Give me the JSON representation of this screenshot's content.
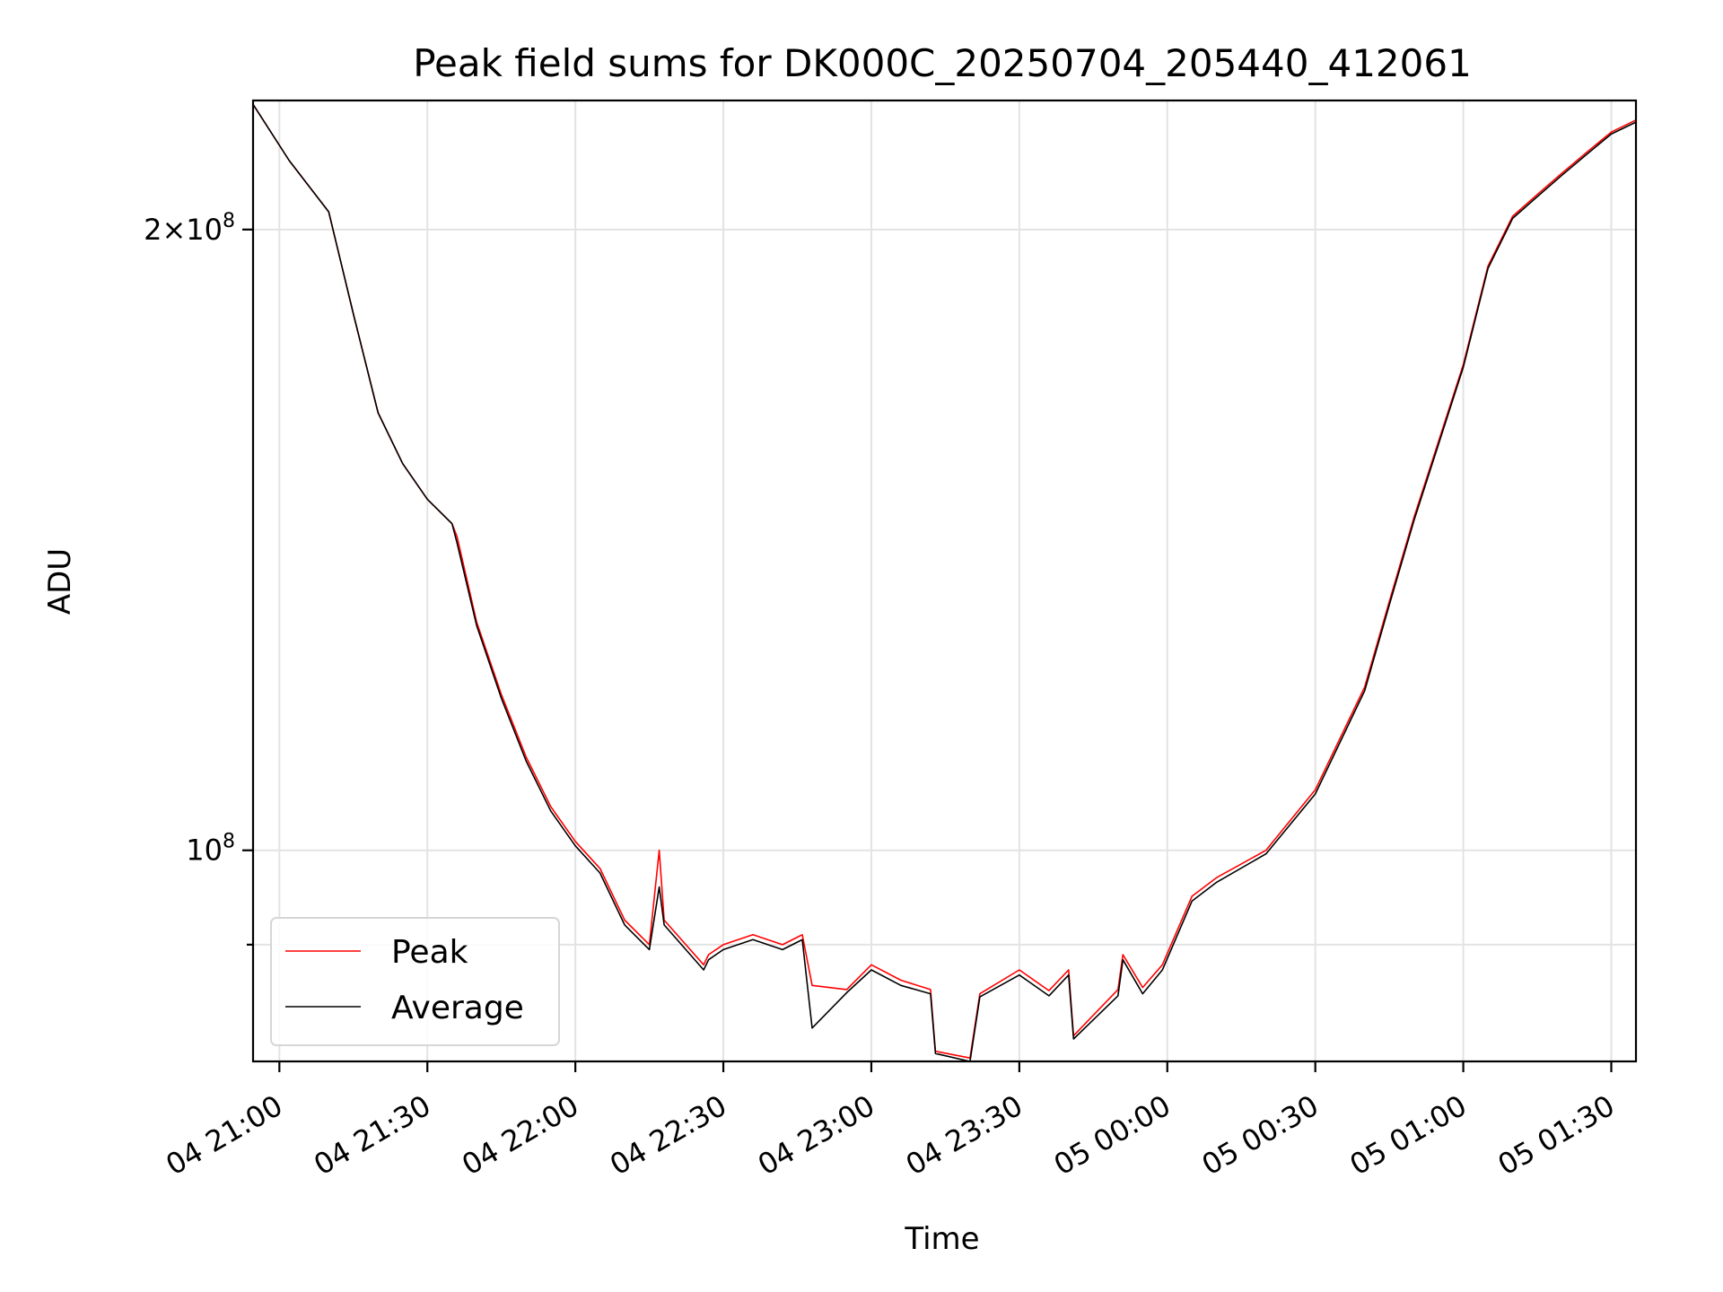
{
  "chart_data": {
    "type": "line",
    "title": "Peak field sums for DK000C_20250704_205440_412061",
    "xlabel": "Time",
    "ylabel": "ADU",
    "yscale": "log",
    "ylim": [
      79000000,
      231000000
    ],
    "xlim": [
      "2025-07-04 20:54:40",
      "2025-07-05 01:35:00"
    ],
    "grid": true,
    "legend_position": "lower-left",
    "x_ticks": [
      {
        "value": "2025-07-04 21:00",
        "label": "04 21:00"
      },
      {
        "value": "2025-07-04 21:30",
        "label": "04 21:30"
      },
      {
        "value": "2025-07-04 22:00",
        "label": "04 22:00"
      },
      {
        "value": "2025-07-04 22:30",
        "label": "04 22:30"
      },
      {
        "value": "2025-07-04 23:00",
        "label": "04 23:00"
      },
      {
        "value": "2025-07-04 23:30",
        "label": "04 23:30"
      },
      {
        "value": "2025-07-05 00:00",
        "label": "05 00:00"
      },
      {
        "value": "2025-07-05 00:30",
        "label": "05 00:30"
      },
      {
        "value": "2025-07-05 01:00",
        "label": "05 01:00"
      },
      {
        "value": "2025-07-05 01:30",
        "label": "05 01:30"
      }
    ],
    "y_ticks": [
      {
        "value": 200000000,
        "base": "2×10",
        "exp": "8"
      },
      {
        "value": 100000000,
        "base": "10",
        "exp": "8"
      }
    ],
    "y_minor_ticks": [
      90000000
    ],
    "x": [
      "2025-07-04 20:54:40",
      "2025-07-04 21:02:00",
      "2025-07-04 21:10:00",
      "2025-07-04 21:15:00",
      "2025-07-04 21:20:00",
      "2025-07-04 21:25:00",
      "2025-07-04 21:30:00",
      "2025-07-04 21:35:00",
      "2025-07-04 21:36:00",
      "2025-07-04 21:40:00",
      "2025-07-04 21:45:00",
      "2025-07-04 21:50:00",
      "2025-07-04 21:55:00",
      "2025-07-04 22:00:00",
      "2025-07-04 22:05:00",
      "2025-07-04 22:10:00",
      "2025-07-04 22:15:00",
      "2025-07-04 22:17:00",
      "2025-07-04 22:18:00",
      "2025-07-04 22:26:00",
      "2025-07-04 22:27:00",
      "2025-07-04 22:30:00",
      "2025-07-04 22:36:00",
      "2025-07-04 22:42:00",
      "2025-07-04 22:46:00",
      "2025-07-04 22:48:00",
      "2025-07-04 22:55:00",
      "2025-07-04 23:00:00",
      "2025-07-04 23:06:00",
      "2025-07-04 23:12:00",
      "2025-07-04 23:13:00",
      "2025-07-04 23:20:00",
      "2025-07-04 23:22:00",
      "2025-07-04 23:30:00",
      "2025-07-04 23:36:00",
      "2025-07-04 23:40:00",
      "2025-07-04 23:41:00",
      "2025-07-04 23:50:00",
      "2025-07-04 23:51:00",
      "2025-07-04 23:55:00",
      "2025-07-04 23:59:00",
      "2025-07-05 00:05:00",
      "2025-07-05 00:10:00",
      "2025-07-05 00:20:00",
      "2025-07-05 00:30:00",
      "2025-07-05 00:40:00",
      "2025-07-05 00:45:00",
      "2025-07-05 00:50:00",
      "2025-07-05 01:00:00",
      "2025-07-05 01:05:00",
      "2025-07-05 01:10:00",
      "2025-07-05 01:15:00",
      "2025-07-05 01:20:00",
      "2025-07-05 01:25:00",
      "2025-07-05 01:30:00",
      "2025-07-05 01:35:00"
    ],
    "series": [
      {
        "name": "Peak",
        "color": "#ff0000",
        "values": [
          230000000,
          216000000,
          204000000,
          182000000,
          163000000,
          154000000,
          148000000,
          144000000,
          142000000,
          129000000,
          119000000,
          111000000,
          105000000,
          101000000,
          98000000,
          92500000,
          90000000,
          100000000,
          92500000,
          88000000,
          89000000,
          90000000,
          91000000,
          90000000,
          91000000,
          86000000,
          85600000,
          88000000,
          86500000,
          85600000,
          79900000,
          79300000,
          85200000,
          87500000,
          85500000,
          87500000,
          81300000,
          85600000,
          89000000,
          85800000,
          88000000,
          95000000,
          97000000,
          100000000,
          107000000,
          120000000,
          132000000,
          145000000,
          172000000,
          192000000,
          203000000,
          208000000,
          213000000,
          218000000,
          223000000,
          226000000
        ]
      },
      {
        "name": "Average",
        "color": "#000000",
        "values": [
          230000000,
          216000000,
          204000000,
          182000000,
          163000000,
          154000000,
          148000000,
          144000000,
          141000000,
          128500000,
          118500000,
          110500000,
          104500000,
          100500000,
          97500000,
          92000000,
          89500000,
          96000000,
          92000000,
          87500000,
          88500000,
          89500000,
          90500000,
          89500000,
          90500000,
          82000000,
          85300000,
          87500000,
          86000000,
          85200000,
          79700000,
          79000000,
          84900000,
          87000000,
          85000000,
          87000000,
          81000000,
          85000000,
          88500000,
          85200000,
          87500000,
          94500000,
          96500000,
          99600000,
          106500000,
          119500000,
          131500000,
          144500000,
          171500000,
          191500000,
          202500000,
          207500000,
          212500000,
          217500000,
          222500000,
          225500000
        ]
      }
    ]
  }
}
